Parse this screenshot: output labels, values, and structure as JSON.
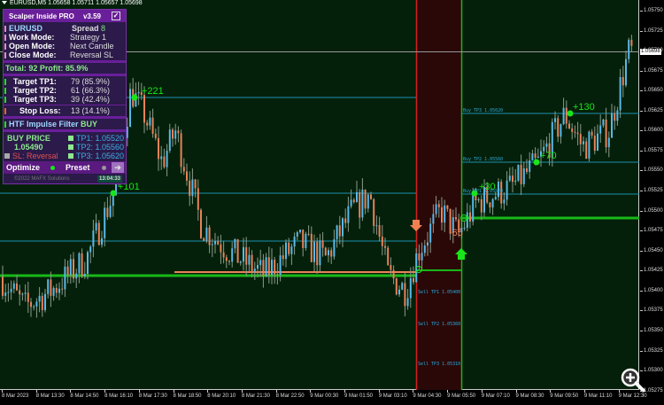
{
  "window": {
    "title": "EURUSD,M5  1.05658 1.05711 1.05657 1.05698",
    "current_price": "1.05698"
  },
  "colors": {
    "background": "#04200a",
    "bull": "#5ab8e8",
    "bear": "#e8825a",
    "signal_zone": "#2a0808",
    "panel": "#2b1a4a",
    "accent": "#6a1f9a",
    "green": "#1ae51a"
  },
  "price_axis": [
    "1.05750",
    "1.05725",
    "1.05700",
    "1.05675",
    "1.05650",
    "1.05625",
    "1.05600",
    "1.05575",
    "1.05550",
    "1.05525",
    "1.05500",
    "1.05475",
    "1.05450",
    "1.05425",
    "1.05400",
    "1.05375",
    "1.05350",
    "1.05325",
    "1.05300",
    "1.05275"
  ],
  "time_axis": [
    "8 Mar 2023",
    "8 Mar 13:30",
    "8 Mar 14:50",
    "8 Mar 16:10",
    "8 Mar 17:30",
    "8 Mar 18:50",
    "8 Mar 20:10",
    "8 Mar 21:30",
    "8 Mar 22:50",
    "9 Mar 00:30",
    "9 Mar 01:50",
    "9 Mar 03:10",
    "9 Mar 04:30",
    "9 Mar 05:50",
    "9 Mar 07:10",
    "9 Mar 08:30",
    "9 Mar 09:50",
    "9 Mar 11:10",
    "9 Mar 12:30"
  ],
  "panel": {
    "title": "Scalper Inside PRO",
    "version": "v3.59",
    "check": "✓",
    "symbol": "EURUSD",
    "spread_label": "Spread",
    "spread_value": "8",
    "work_mode_label": "Work Mode:",
    "work_mode": "Strategy 1",
    "open_mode_label": "Open Mode:",
    "open_mode": "Next Candle",
    "close_mode_label": "Close Mode:",
    "close_mode": "Reversal SL",
    "total": "Total: 92  Profit: 85.9%",
    "tp1_label": "Target TP1:",
    "tp1": "79 (85.9%)",
    "tp2_label": "Target TP2:",
    "tp2": "61 (66.3%)",
    "tp3_label": "Target TP3:",
    "tp3": "39 (42.4%)",
    "sl_label": "Stop Loss:",
    "sl": "13 (14.1%)",
    "htf_label": "HTF Impulse Filter",
    "htf": "BUY",
    "buy_price_label": "BUY PRICE",
    "buy_price": "1.05490",
    "sl_text": "SL: Reversal",
    "tp1_price": "TP1: 1.05520",
    "tp2_price": "TP2: 1.05560",
    "tp3_price": "TP3: 1.05620",
    "optimize": "Optimize",
    "preset": "Preset",
    "arrow": "➔",
    "copyright": "©2022 MAFX Solutions",
    "clock": "13:04:33"
  },
  "markers": {
    "m1": "+221",
    "m2": "+101",
    "m3": "+30",
    "m4": "+70",
    "m5": "+130",
    "loss": "-65"
  },
  "labels": {
    "buy_tp3": "Buy TP3 1.05620",
    "buy_tp2": "Buy TP2 1.05560",
    "buy_tp1": "Buy TP1 1.05520",
    "sell_tp1": "Sell TP1 1.05400",
    "sell_tp2": "Sell TP2 1.05360",
    "sell_tp3": "Sell TP3 1.05310"
  }
}
